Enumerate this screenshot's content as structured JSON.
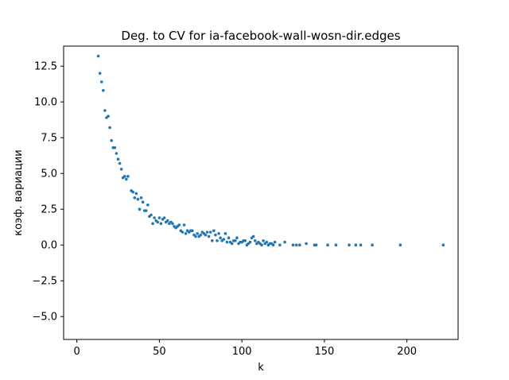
{
  "chart_data": {
    "type": "scatter",
    "title": "Deg. to CV for ia-facebook-wall-wosn-dir.edges",
    "xlabel": "k",
    "ylabel": "коэф. вариации",
    "xlim": [
      -8,
      231
    ],
    "ylim": [
      -6.6,
      13.9
    ],
    "xticks": [
      0,
      50,
      100,
      150,
      200
    ],
    "yticks": [
      -5.0,
      -2.5,
      0.0,
      2.5,
      5.0,
      7.5,
      10.0,
      12.5
    ],
    "xtick_labels": [
      "0",
      "50",
      "100",
      "150",
      "200"
    ],
    "ytick_labels": [
      "−5.0",
      "−2.5",
      "0.0",
      "2.5",
      "5.0",
      "7.5",
      "10.0",
      "12.5"
    ],
    "grid": false,
    "marker_color": "#1f77b4",
    "series": [
      {
        "points": [
          [
            13,
            13.2
          ],
          [
            14,
            12.0
          ],
          [
            15,
            11.4
          ],
          [
            16,
            10.8
          ],
          [
            17,
            9.4
          ],
          [
            18,
            8.9
          ],
          [
            19,
            9.0
          ],
          [
            20,
            8.2
          ],
          [
            21,
            7.3
          ],
          [
            22,
            6.8
          ],
          [
            23,
            6.8
          ],
          [
            24,
            6.4
          ],
          [
            25,
            6.0
          ],
          [
            26,
            5.7
          ],
          [
            27,
            5.3
          ],
          [
            28,
            4.7
          ],
          [
            29,
            4.8
          ],
          [
            30,
            4.6
          ],
          [
            31,
            4.8
          ],
          [
            33,
            3.8
          ],
          [
            34,
            3.7
          ],
          [
            35,
            3.3
          ],
          [
            36,
            3.6
          ],
          [
            37,
            3.2
          ],
          [
            38,
            2.5
          ],
          [
            39,
            3.3
          ],
          [
            40,
            3.0
          ],
          [
            41,
            2.4
          ],
          [
            42,
            2.4
          ],
          [
            43,
            2.8
          ],
          [
            44,
            2.0
          ],
          [
            45,
            2.1
          ],
          [
            46,
            1.5
          ],
          [
            47,
            1.9
          ],
          [
            48,
            1.7
          ],
          [
            49,
            1.6
          ],
          [
            50,
            1.9
          ],
          [
            51,
            1.5
          ],
          [
            52,
            1.8
          ],
          [
            53,
            1.9
          ],
          [
            54,
            1.6
          ],
          [
            55,
            1.7
          ],
          [
            56,
            1.5
          ],
          [
            57,
            1.6
          ],
          [
            58,
            1.5
          ],
          [
            59,
            1.3
          ],
          [
            60,
            1.2
          ],
          [
            61,
            1.3
          ],
          [
            62,
            1.4
          ],
          [
            63,
            1.0
          ],
          [
            64,
            0.9
          ],
          [
            65,
            1.4
          ],
          [
            66,
            0.8
          ],
          [
            67,
            1.0
          ],
          [
            68,
            0.9
          ],
          [
            69,
            1.0
          ],
          [
            70,
            1.0
          ],
          [
            71,
            0.7
          ],
          [
            72,
            0.6
          ],
          [
            73,
            0.8
          ],
          [
            74,
            0.6
          ],
          [
            75,
            0.7
          ],
          [
            76,
            0.9
          ],
          [
            77,
            0.8
          ],
          [
            78,
            0.7
          ],
          [
            79,
            0.9
          ],
          [
            80,
            0.6
          ],
          [
            81,
            0.9
          ],
          [
            82,
            0.3
          ],
          [
            83,
            1.0
          ],
          [
            84,
            0.7
          ],
          [
            85,
            0.3
          ],
          [
            86,
            0.8
          ],
          [
            87,
            0.5
          ],
          [
            88,
            0.3
          ],
          [
            89,
            0.4
          ],
          [
            90,
            0.8
          ],
          [
            91,
            0.2
          ],
          [
            92,
            0.5
          ],
          [
            93,
            0.2
          ],
          [
            94,
            0.1
          ],
          [
            95,
            0.3
          ],
          [
            96,
            0.3
          ],
          [
            97,
            0.5
          ],
          [
            98,
            0.1
          ],
          [
            99,
            0.2
          ],
          [
            100,
            0.2
          ],
          [
            101,
            0.3
          ],
          [
            102,
            0.3
          ],
          [
            103,
            0.0
          ],
          [
            104,
            0.1
          ],
          [
            105,
            0.2
          ],
          [
            106,
            0.5
          ],
          [
            107,
            0.6
          ],
          [
            108,
            0.3
          ],
          [
            109,
            0.1
          ],
          [
            110,
            0.2
          ],
          [
            111,
            0.1
          ],
          [
            112,
            0.0
          ],
          [
            113,
            0.3
          ],
          [
            114,
            0.1
          ],
          [
            115,
            0.2
          ],
          [
            116,
            0.0
          ],
          [
            117,
            0.1
          ],
          [
            118,
            0.1
          ],
          [
            119,
            0.0
          ],
          [
            120,
            0.2
          ],
          [
            123,
            0.0
          ],
          [
            126,
            0.2
          ],
          [
            131,
            0.0
          ],
          [
            133,
            0.0
          ],
          [
            135,
            0.0
          ],
          [
            139,
            0.1
          ],
          [
            144,
            0.0
          ],
          [
            145,
            0.0
          ],
          [
            152,
            0.0
          ],
          [
            157,
            0.0
          ],
          [
            165,
            0.0
          ],
          [
            169,
            0.0
          ],
          [
            172,
            0.0
          ],
          [
            179,
            0.0
          ],
          [
            196,
            0.0
          ],
          [
            222,
            0.0
          ]
        ]
      }
    ]
  }
}
